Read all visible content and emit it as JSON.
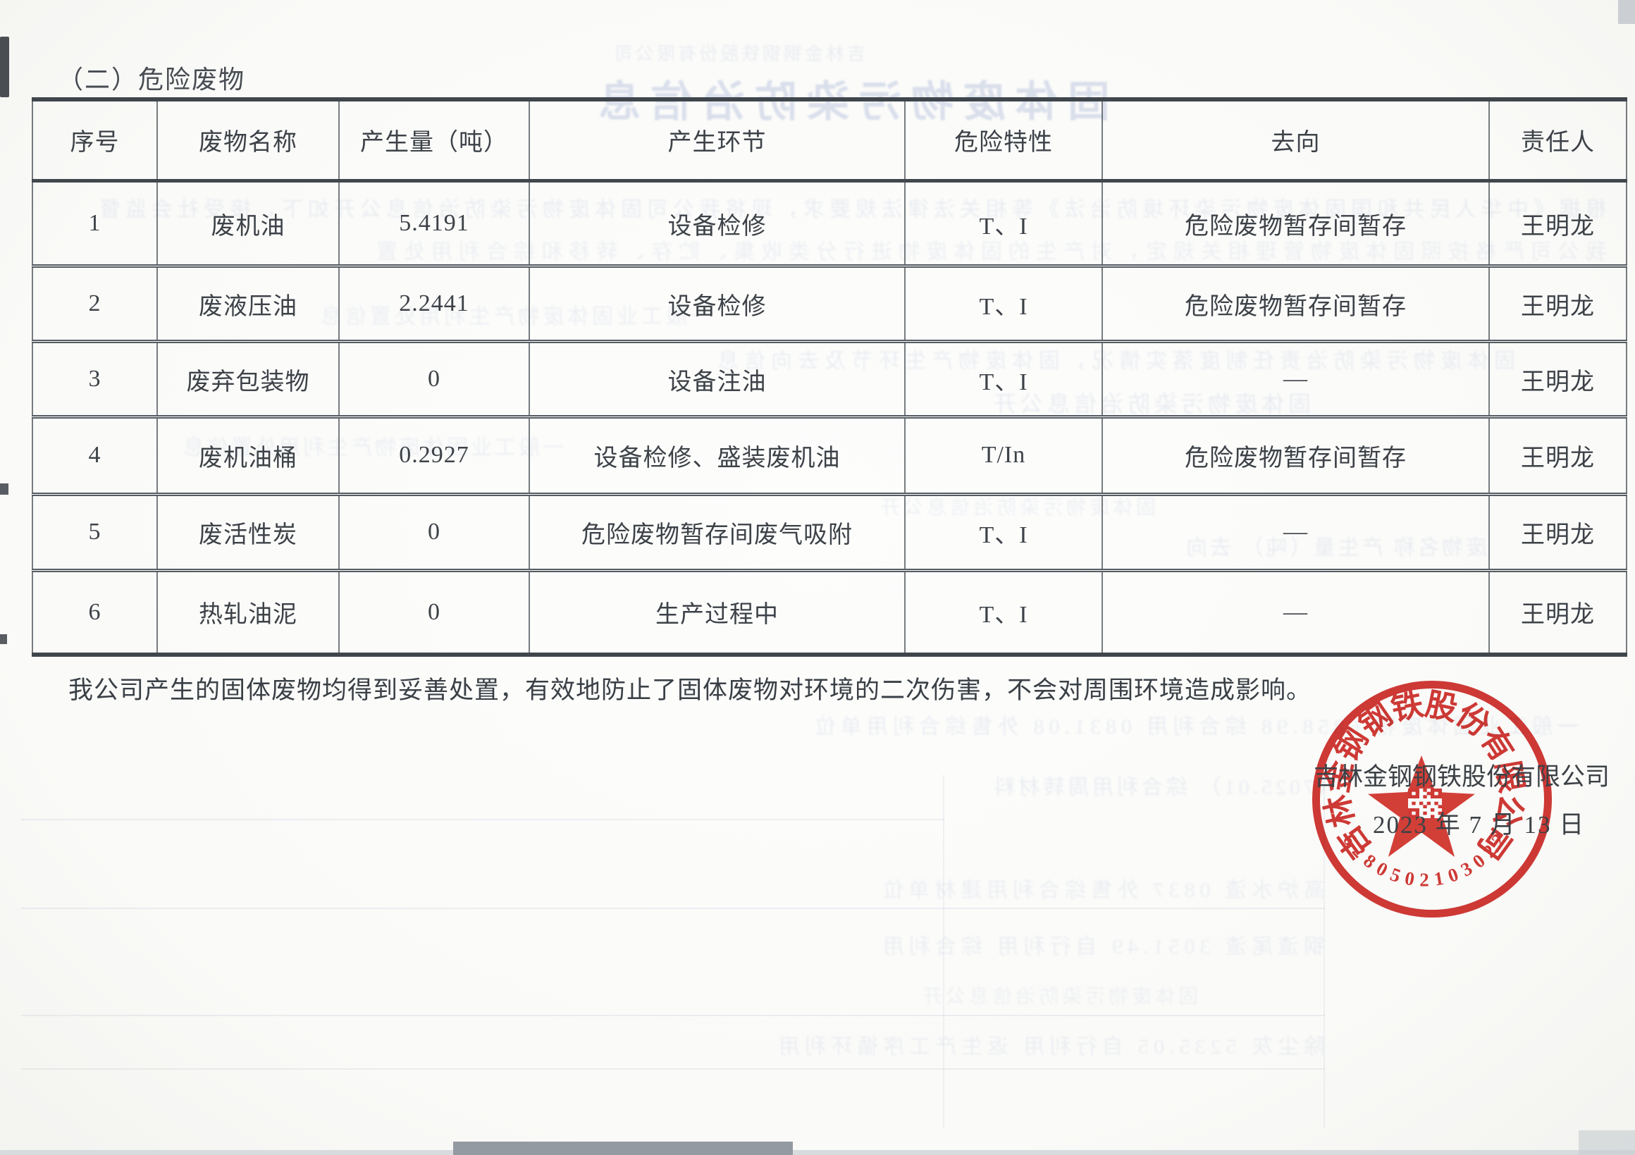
{
  "document": {
    "section_title": "（二）危险废物",
    "closing_statement": "我公司产生的固体废物均得到妥善处置，有效地防止了固体废物对环境的二次伤害，不会对周围环境造成影响。"
  },
  "table": {
    "headers": [
      "序号",
      "废物名称",
      "产生量（吨）",
      "产生环节",
      "危险特性",
      "去向",
      "责任人"
    ],
    "rows": [
      [
        "1",
        "废机油",
        "5.4191",
        "设备检修",
        "T、I",
        "危险废物暂存间暂存",
        "王明龙"
      ],
      [
        "2",
        "废液压油",
        "2.2441",
        "设备检修",
        "T、I",
        "危险废物暂存间暂存",
        "王明龙"
      ],
      [
        "3",
        "废弃包装物",
        "0",
        "设备注油",
        "T、I",
        "—",
        "王明龙"
      ],
      [
        "4",
        "废机油桶",
        "0.2927",
        "设备检修、盛装废机油",
        "T/In",
        "危险废物暂存间暂存",
        "王明龙"
      ],
      [
        "5",
        "废活性炭",
        "0",
        "危险废物暂存间废气吸附",
        "T、I",
        "—",
        "王明龙"
      ],
      [
        "6",
        "热轧油泥",
        "0",
        "生产过程中",
        "T、I",
        "—",
        "王明龙"
      ]
    ]
  },
  "seal": {
    "company_text": "吉林金钢钢铁股份有限公司",
    "date_text": "2023 年 7 月 13 日",
    "ring_text": "吉林金钢钢铁股份有限公司",
    "serial": "2203012050826",
    "color": "#ce2b26",
    "star_icon": "red-star",
    "qr_icon": "qr-code"
  },
  "bleed_through": {
    "items": [
      "吉林金钢钢铁股份有限公司",
      "固体废物污染防治信息",
      "根据《中华人民共和国固体废物污染环境防治法》等相关法律法规要求，现将我公司固体废物污染防治信息公开如下，接受社会监督",
      "我公司严格按照固体废物管理相关规定，对产生的固体废物进行分类收集、贮存、转移和综合利用处置",
      "一般工业固体废物产生利用处置信息",
      "固体废物污染防治责任制度落实情况，固体废物产生环节及去向信息",
      "固体废物污染防治信息公开",
      "废物名称 产生量（吨） 去向",
      "一般工业固体废物 6858.98 综合利用 0831.08 外售综合利用单位",
      "（7025.01） 综合利用周转材料",
      "高炉水渣 0837 外售综合利用建材单位",
      "钢渣尾渣 3051.49 自行利用 综合利用",
      "除尘灰 5235.05 自行利用 返生产工序循环利用"
    ]
  }
}
